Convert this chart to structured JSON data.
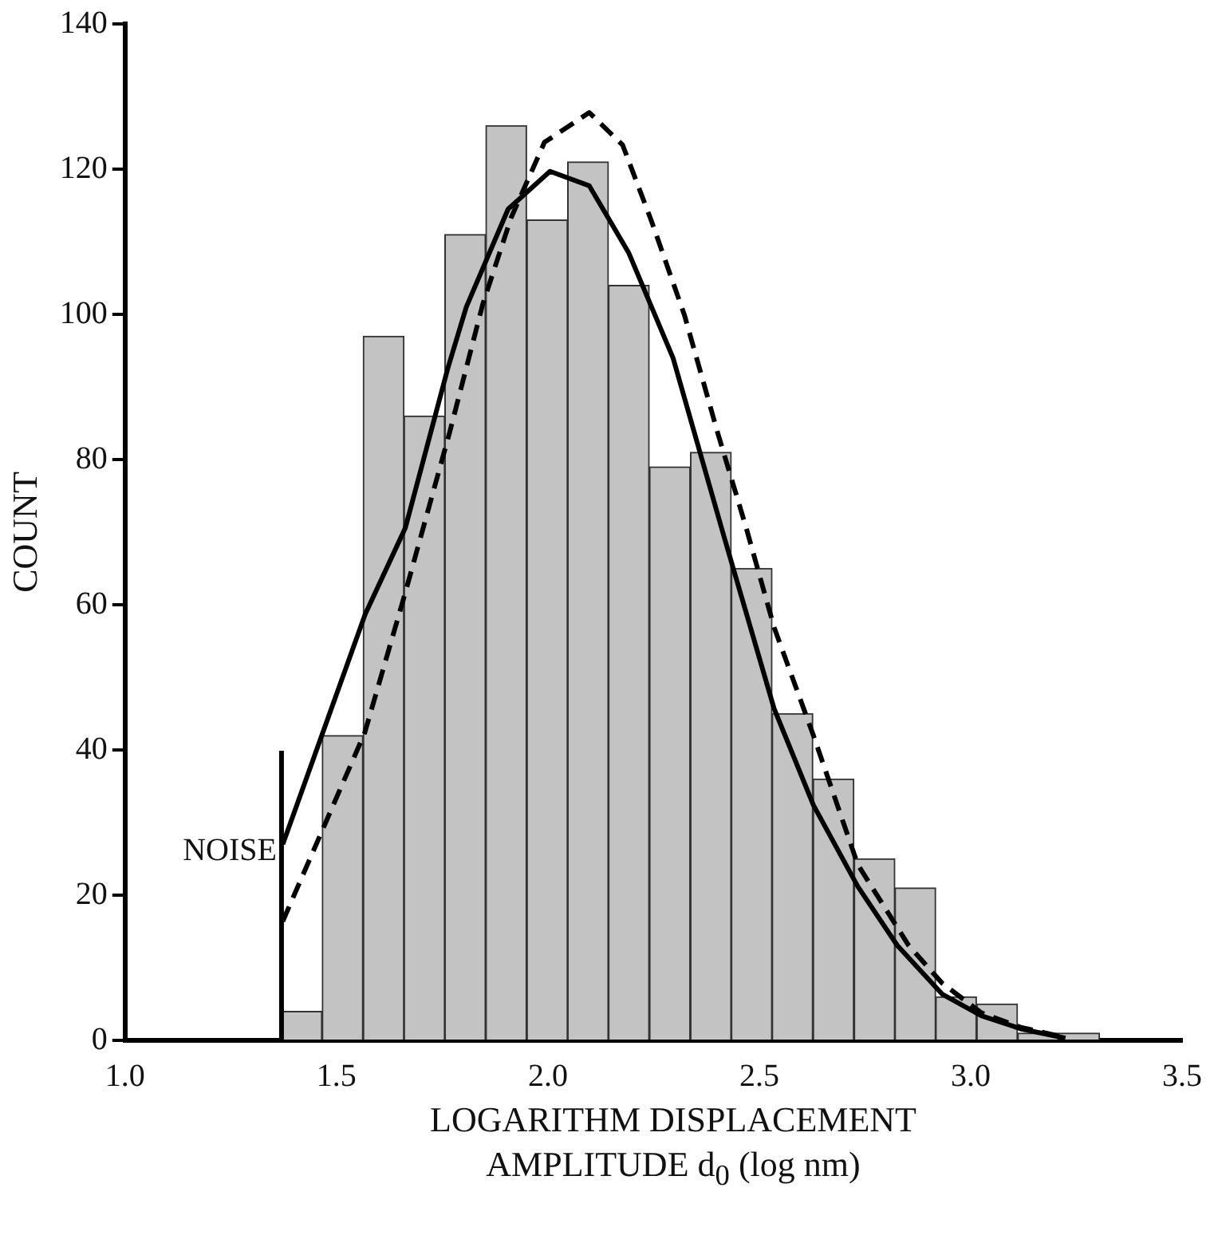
{
  "chart_data": {
    "type": "histogram",
    "xlabel": "LOGARITHM DISPLACEMENT AMPLITUDE d$_{0}$ (log nm)",
    "ylabel": "COUNT",
    "bins": [
      1.369,
      1.466,
      1.563,
      1.66,
      1.756,
      1.853,
      1.95,
      2.047,
      2.143,
      2.24,
      2.337,
      2.434,
      2.53,
      2.627,
      2.724,
      2.821,
      2.917,
      3.014,
      3.111,
      3.208,
      3.305
    ],
    "values": [
      4,
      42,
      97,
      86,
      111,
      126,
      113,
      121,
      104,
      79,
      81,
      65,
      45,
      36,
      25,
      21,
      6,
      5,
      1,
      1
    ],
    "color": "#c3c3c3",
    "series": [
      {
        "type": "line",
        "color": "#000000",
        "line_style": "solid",
        "x": [
          1.373,
          1.568,
          1.663,
          1.763,
          1.807,
          1.906,
          2.005,
          2.098,
          2.191,
          2.296,
          2.416,
          2.535,
          2.628,
          2.733,
          2.826,
          2.932,
          3.025,
          3.118,
          3.224
        ],
        "values": [
          27,
          58.7,
          70.6,
          92.5,
          101,
          114.5,
          119.7,
          117.7,
          108.5,
          94,
          69.5,
          45.7,
          32.4,
          21.2,
          13.1,
          6.4,
          3.4,
          1.6,
          0.3
        ]
      },
      {
        "type": "line",
        "color": "#000000",
        "line_style": "dashed",
        "x": [
          1.373,
          1.567,
          1.661,
          1.767,
          1.846,
          1.913,
          1.992,
          2.098,
          2.177,
          2.244,
          2.323,
          2.402,
          2.469,
          2.535,
          2.628,
          2.733,
          2.853,
          2.932,
          3.025,
          3.118,
          3.224
        ],
        "values": [
          16.4,
          42.4,
          61.3,
          83.6,
          101.4,
          113.3,
          123.7,
          127.8,
          123.3,
          113,
          99.9,
          83.6,
          70.6,
          56.9,
          42,
          24.2,
          13.1,
          7.9,
          3.8,
          1.8,
          0.4
        ]
      }
    ],
    "ref_lines": [
      {
        "axis": "x",
        "value": 1.37,
        "label": "NOISE",
        "color": "#000000"
      }
    ],
    "xlim": [
      1,
      3.5
    ],
    "xticks": [
      {
        "value": 1,
        "label": "1.0"
      },
      {
        "value": 1.5,
        "label": "1.5"
      },
      {
        "value": 2,
        "label": "2.0"
      },
      {
        "value": 2.5,
        "label": "2.5"
      },
      {
        "value": 3,
        "label": "3.0"
      },
      {
        "value": 3.5,
        "label": "3.5"
      }
    ],
    "ylim": [
      0,
      140
    ],
    "yticks": [
      0,
      20,
      40,
      60,
      80,
      100,
      120,
      140
    ],
    "grid": false,
    "legend": false,
    "marker": "none"
  }
}
